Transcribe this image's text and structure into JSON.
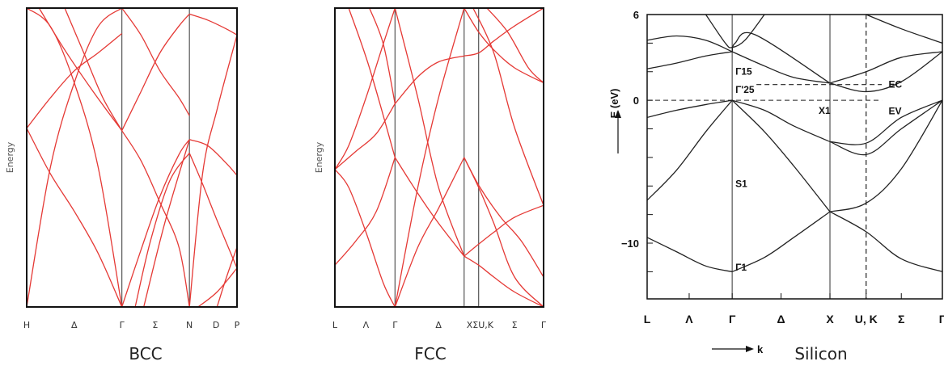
{
  "chart_data": [
    {
      "type": "line",
      "caption": "BCC",
      "ylabel": "Energy",
      "line_color": "#e53935",
      "xticks": [
        {
          "label": "H",
          "x": 0
        },
        {
          "label": "Δ",
          "x": 0.5
        },
        {
          "label": "Γ",
          "x": 1
        },
        {
          "label": "Σ",
          "x": 1.35
        },
        {
          "label": "N",
          "x": 1.71
        },
        {
          "label": "D",
          "x": 1.99
        },
        {
          "label": "P",
          "x": 2.21
        }
      ],
      "vlines": [
        1,
        1.71
      ],
      "xlim": [
        0,
        2.21
      ],
      "ylim": [
        0,
        100
      ],
      "series": [
        {
          "x": [
            0,
            0.25,
            0.5,
            0.75,
            1
          ],
          "y": [
            0,
            46.9,
            75,
            93.8,
            100
          ]
        },
        {
          "x": [
            0,
            0.25,
            0.5,
            0.75,
            1
          ],
          "y": [
            100,
            93.8,
            75,
            46.9,
            0
          ]
        },
        {
          "x": [
            0,
            0.25,
            0.5,
            0.75,
            1
          ],
          "y": [
            59.8,
            44.5,
            32,
            18,
            0
          ]
        },
        {
          "x": [
            0,
            0.25,
            0.5,
            0.75,
            1
          ],
          "y": [
            59.8,
            70,
            79,
            85,
            91.5
          ]
        },
        {
          "x": [
            0.13,
            0.4,
            0.7,
            1
          ],
          "y": [
            100,
            86,
            72,
            59
          ]
        },
        {
          "x": [
            0.4,
            0.6,
            0.8,
            1
          ],
          "y": [
            100,
            85,
            70,
            59
          ]
        },
        {
          "x": [
            1,
            1.2,
            1.4,
            1.6,
            1.71
          ],
          "y": [
            100,
            91,
            79,
            70,
            64
          ]
        },
        {
          "x": [
            1,
            1.2,
            1.4,
            1.6,
            1.71
          ],
          "y": [
            59,
            72,
            85,
            94,
            98
          ]
        },
        {
          "x": [
            1,
            1.2,
            1.4,
            1.6,
            1.71
          ],
          "y": [
            59,
            49,
            35,
            20,
            0
          ]
        },
        {
          "x": [
            1,
            1.2,
            1.4,
            1.6,
            1.71
          ],
          "y": [
            0,
            19,
            37,
            51,
            56
          ]
        },
        {
          "x": [
            1.14,
            1.3,
            1.5,
            1.71
          ],
          "y": [
            0,
            22,
            42,
            51.5
          ]
        },
        {
          "x": [
            1.23,
            1.45,
            1.71
          ],
          "y": [
            0,
            28,
            56
          ]
        },
        {
          "x": [
            1.71,
            1.85,
            2,
            2.21
          ],
          "y": [
            51.5,
            41,
            29,
            13
          ]
        },
        {
          "x": [
            1.71,
            1.9,
            2.1,
            2.21
          ],
          "y": [
            98,
            96,
            93,
            91
          ]
        },
        {
          "x": [
            1.71,
            1.85,
            2,
            2.21
          ],
          "y": [
            0,
            45,
            66,
            91
          ]
        },
        {
          "x": [
            1.71,
            1.9,
            2.1,
            2.21
          ],
          "y": [
            56,
            54,
            48,
            44
          ]
        },
        {
          "x": [
            1.8,
            2,
            2.21
          ],
          "y": [
            0,
            5,
            13
          ]
        },
        {
          "x": [
            2.0,
            2.1,
            2.21
          ],
          "y": [
            0,
            10,
            20
          ]
        }
      ]
    },
    {
      "type": "line",
      "caption": "FCC",
      "ylabel": "Energy",
      "line_color": "#e53935",
      "xticks": [
        {
          "label": "L",
          "x": 0
        },
        {
          "label": "Λ",
          "x": 0.45
        },
        {
          "label": "Γ",
          "x": 0.87
        },
        {
          "label": "Δ",
          "x": 1.5
        },
        {
          "label": "XΣU,K",
          "x": 2.1
        },
        {
          "label": "Σ",
          "x": 2.6
        },
        {
          "label": "Γ",
          "x": 3.02
        }
      ],
      "vlines": [
        0.87,
        1.87,
        2.08
      ],
      "xlim": [
        0,
        3.02
      ],
      "ylim": [
        0,
        100
      ],
      "series": [
        {
          "x": [
            0,
            0.2,
            0.45,
            0.7,
            0.87
          ],
          "y": [
            46,
            40,
            25,
            8,
            0
          ]
        },
        {
          "x": [
            0,
            0.2,
            0.45,
            0.7,
            0.87
          ],
          "y": [
            46,
            54,
            70,
            88,
            100
          ]
        },
        {
          "x": [
            0,
            0.3,
            0.6,
            0.87
          ],
          "y": [
            14,
            22,
            32,
            50
          ]
        },
        {
          "x": [
            0,
            0.3,
            0.6,
            0.87
          ],
          "y": [
            46,
            52,
            58,
            68
          ]
        },
        {
          "x": [
            0.2,
            0.5,
            0.87
          ],
          "y": [
            100,
            80,
            50
          ]
        },
        {
          "x": [
            0.5,
            0.7,
            0.87
          ],
          "y": [
            100,
            88,
            68
          ]
        },
        {
          "x": [
            0.87,
            1.2,
            1.5,
            1.87
          ],
          "y": [
            0,
            20,
            33,
            50
          ]
        },
        {
          "x": [
            0.87,
            1.2,
            1.5,
            1.87
          ],
          "y": [
            0,
            40,
            70,
            100
          ]
        },
        {
          "x": [
            0.87,
            1.2,
            1.5,
            1.87
          ],
          "y": [
            68,
            77,
            82,
            84
          ]
        },
        {
          "x": [
            0.87,
            1.2,
            1.5,
            1.87
          ],
          "y": [
            100,
            70,
            40,
            17
          ]
        },
        {
          "x": [
            0.87,
            1.2,
            1.5,
            1.87
          ],
          "y": [
            50,
            38,
            28,
            17
          ]
        },
        {
          "x": [
            1.87,
            2.08,
            2.3,
            2.6,
            3.02
          ],
          "y": [
            17,
            14,
            10,
            5,
            0
          ]
        },
        {
          "x": [
            1.87,
            2.08,
            2.3,
            2.6,
            3.02
          ],
          "y": [
            17,
            21,
            25,
            30,
            34
          ]
        },
        {
          "x": [
            1.87,
            2.08,
            2.3,
            2.6,
            3.02
          ],
          "y": [
            50,
            40,
            28,
            10,
            0
          ]
        },
        {
          "x": [
            1.87,
            2.08,
            2.3,
            2.6,
            3.02
          ],
          "y": [
            84,
            85,
            89,
            94,
            100
          ]
        },
        {
          "x": [
            1.87,
            2.08,
            2.3,
            2.6,
            3.02
          ],
          "y": [
            100,
            92,
            86,
            80,
            75
          ]
        },
        {
          "x": [
            2.0,
            2.3,
            2.6,
            3.02
          ],
          "y": [
            100,
            85,
            60,
            34
          ]
        },
        {
          "x": [
            2.2,
            2.5,
            2.8,
            3.02
          ],
          "y": [
            100,
            92,
            80,
            75
          ]
        },
        {
          "x": [
            1.87,
            2.1,
            2.4,
            2.7,
            3.02
          ],
          "y": [
            50,
            40,
            30,
            22,
            10
          ]
        }
      ]
    },
    {
      "type": "line",
      "caption": "Silicon",
      "ylabel": "E (eV)",
      "xlabel": "k",
      "line_color": "#222222",
      "xticks": [
        {
          "label": "L",
          "x": 0
        },
        {
          "label": "Λ",
          "x": 0.43
        },
        {
          "label": "Γ",
          "x": 0.87
        },
        {
          "label": "Δ",
          "x": 1.37
        },
        {
          "label": "X",
          "x": 1.87
        },
        {
          "label": "U, K",
          "x": 2.24
        },
        {
          "label": "Σ",
          "x": 2.6
        },
        {
          "label": "Γ",
          "x": 3.02
        }
      ],
      "yticks": [
        {
          "label": "6",
          "y": 6
        },
        {
          "label": "0",
          "y": 0
        },
        {
          "label": "−10",
          "y": -10
        }
      ],
      "vlines": [
        0.87,
        1.87
      ],
      "dashed_vline": 2.24,
      "xlim": [
        0,
        3.02
      ],
      "ylim": [
        -13.9,
        6
      ],
      "annotations": [
        {
          "text": "Γ15",
          "x": 0.87,
          "y": 2.8
        },
        {
          "text": "Γ'25",
          "x": 0.87,
          "y": 0.3
        },
        {
          "text": "X1",
          "x": 1.87,
          "y": 0.3
        },
        {
          "text": "EC",
          "x": 2.42,
          "y": 1.1
        },
        {
          "text": "EV",
          "x": 2.42,
          "y": -0.2
        },
        {
          "text": "S1",
          "x": 0.87,
          "y": -6.3
        },
        {
          "text": "Γ1",
          "x": 0.87,
          "y": -11.8
        }
      ],
      "dashed_levels": [
        {
          "name": "EC",
          "y": 1.1
        },
        {
          "name": "EV",
          "y": 0
        }
      ],
      "series": [
        {
          "x": [
            0,
            0.3,
            0.6,
            0.87
          ],
          "y": [
            -1.2,
            -0.7,
            -0.3,
            0
          ]
        },
        {
          "x": [
            0,
            0.3,
            0.6,
            0.87
          ],
          "y": [
            -7.0,
            -4.9,
            -2.2,
            0
          ]
        },
        {
          "x": [
            0,
            0.3,
            0.6,
            0.87
          ],
          "y": [
            -9.6,
            -10.6,
            -11.6,
            -12.0
          ]
        },
        {
          "x": [
            0,
            0.3,
            0.6,
            0.87
          ],
          "y": [
            2.2,
            2.6,
            3.1,
            3.4
          ]
        },
        {
          "x": [
            0,
            0.3,
            0.6,
            0.87
          ],
          "y": [
            4.2,
            4.5,
            4.2,
            3.4
          ]
        },
        {
          "x": [
            0.87,
            1.2,
            1.5,
            1.87
          ],
          "y": [
            0,
            -2.2,
            -4.6,
            -7.8
          ]
        },
        {
          "x": [
            0.87,
            1.2,
            1.5,
            1.87
          ],
          "y": [
            0,
            -0.7,
            -1.8,
            -2.9
          ]
        },
        {
          "x": [
            0.87,
            1.2,
            1.5,
            1.87
          ],
          "y": [
            -12.0,
            -11.0,
            -9.6,
            -7.8
          ]
        },
        {
          "x": [
            0.87,
            1.2,
            1.5,
            1.87
          ],
          "y": [
            3.4,
            2.4,
            1.6,
            1.2
          ]
        },
        {
          "x": [
            0.87,
            0.9,
            1.1,
            1.87
          ],
          "y": [
            3.4,
            4.0,
            4.6,
            1.2
          ]
        },
        {
          "x": [
            0.6,
            0.8,
            0.87,
            1.0,
            1.2
          ],
          "y": [
            6,
            4.0,
            3.7,
            4.2,
            6
          ]
        },
        {
          "x": [
            1.87,
            2.24,
            2.6,
            3.02
          ],
          "y": [
            -2.9,
            -3.8,
            -2.0,
            0
          ]
        },
        {
          "x": [
            1.87,
            2.24,
            2.6,
            3.02
          ],
          "y": [
            -2.9,
            -3.0,
            -1.2,
            0
          ]
        },
        {
          "x": [
            1.87,
            2.24,
            2.6,
            3.02
          ],
          "y": [
            -7.8,
            -7.2,
            -4.8,
            0
          ]
        },
        {
          "x": [
            1.87,
            2.24,
            2.6,
            3.02
          ],
          "y": [
            -7.8,
            -9.2,
            -11.1,
            -12.0
          ]
        },
        {
          "x": [
            1.87,
            2.24,
            2.6,
            3.02
          ],
          "y": [
            1.2,
            2.0,
            3.0,
            3.4
          ]
        },
        {
          "x": [
            1.87,
            2.24,
            2.6,
            3.02
          ],
          "y": [
            1.2,
            0.6,
            1.3,
            3.4
          ]
        },
        {
          "x": [
            2.24,
            2.6,
            3.02
          ],
          "y": [
            6,
            5.0,
            4.0
          ]
        }
      ]
    }
  ]
}
